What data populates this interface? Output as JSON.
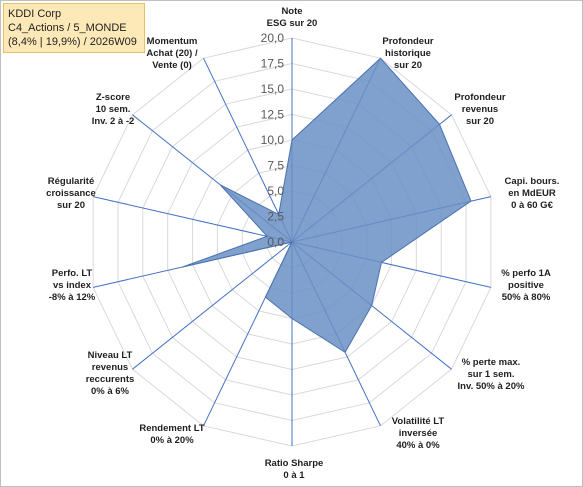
{
  "title_box": {
    "line1": "KDDI Corp",
    "line2": "C4_Actions / 5_MONDE",
    "line3": "(8,4% | 19,9%) / 2026W09"
  },
  "chart_data": {
    "type": "radar",
    "title": "",
    "rmin": 0,
    "rmax": 20,
    "r_ticks": [
      "0,0",
      "2,5",
      "5,0",
      "7,5",
      "10,0",
      "12,5",
      "15,0",
      "17,5",
      "20,0"
    ],
    "r_tick_values": [
      0,
      2.5,
      5,
      7.5,
      10,
      12.5,
      15,
      17.5,
      20
    ],
    "grid": true,
    "legend": "none",
    "fill_color": "#6a8fc4",
    "stroke_color": "#4a72b0",
    "axes": [
      [
        "Note",
        "ESG sur 20"
      ],
      [
        "Profondeur",
        "historique",
        "sur 20"
      ],
      [
        "Profondeur",
        "revenus",
        "sur 20"
      ],
      [
        "Capi. bours.",
        "en MdEUR",
        "0 à 60 G€"
      ],
      [
        "% perfo 1A",
        "positive",
        "50% à 80%"
      ],
      [
        "% perte max.",
        "sur 1 sem.",
        "Inv. 50% à 20%"
      ],
      [
        "Volatilité LT",
        "inversée",
        "40% à 0%"
      ],
      [
        "Ratio Sharpe",
        "0 à 1"
      ],
      [
        "Rendement LT",
        "0% à 20%"
      ],
      [
        "Niveau LT",
        "revenus",
        "reccurents",
        "0% à 6%"
      ],
      [
        "Perfo. LT",
        "vs index",
        "-8% à 12%"
      ],
      [
        "Régularité",
        "croissance",
        "sur 20"
      ],
      [
        "Z-score",
        "10 sem.",
        "Inv. 2 à -2"
      ],
      [
        "Momentum",
        "Achat (20) /",
        "Vente (0)"
      ]
    ],
    "values": [
      10.0,
      20.0,
      18.5,
      18.0,
      9.0,
      10.0,
      12.0,
      7.5,
      6.0,
      0.0,
      11.0,
      2.5,
      9.0,
      3.0
    ]
  }
}
